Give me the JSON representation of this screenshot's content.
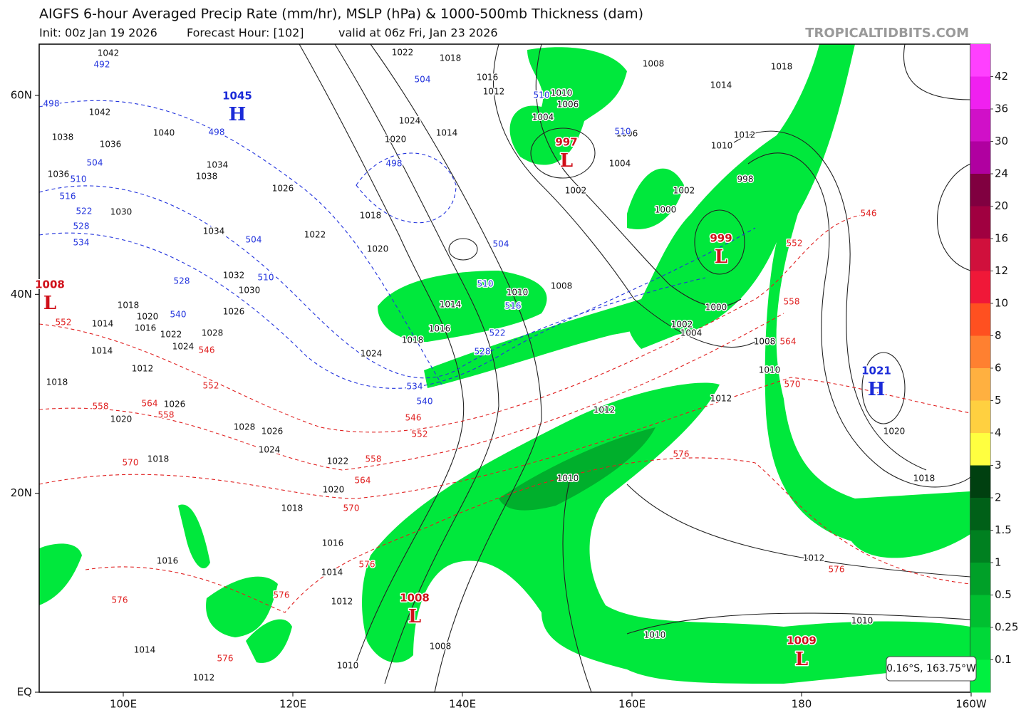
{
  "header": {
    "title": "AIGFS 6-hour Averaged Precip Rate (mm/hr), MSLP (hPa) & 1000-500mb Thickness (dam)",
    "init": "Init: 00z Jan 19 2026",
    "forecast_hour": "Forecast Hour: [102]",
    "valid": "valid at 06z Fri, Jan 23 2026",
    "site": "TROPICALTIDBITS.COM"
  },
  "map": {
    "lat_ticks": [
      {
        "value": 60,
        "label": "60N"
      },
      {
        "value": 40,
        "label": "40N"
      },
      {
        "value": 20,
        "label": "20N"
      },
      {
        "value": 0,
        "label": "EQ"
      }
    ],
    "lon_ticks": [
      {
        "value": 100,
        "label": "100E"
      },
      {
        "value": 120,
        "label": "120E"
      },
      {
        "value": 140,
        "label": "140E"
      },
      {
        "value": 160,
        "label": "160E"
      },
      180,
      {
        "value": 200,
        "label": "160W"
      }
    ],
    "centers": [
      {
        "value": 1045,
        "type": "H"
      },
      {
        "value": 1008,
        "type": "L"
      },
      {
        "value": 997,
        "type": "L"
      },
      {
        "value": 999,
        "type": "L"
      },
      {
        "value": 1021,
        "type": "H"
      },
      {
        "value": 1008,
        "type": "L"
      },
      {
        "value": 1009,
        "type": "L"
      }
    ],
    "isobar_labels": [
      1042,
      1042,
      1038,
      1036,
      1040,
      1034,
      1038,
      1036,
      1030,
      1034,
      1032,
      1030,
      1026,
      1026,
      1022,
      1020,
      1018,
      1020,
      1024,
      1014,
      1022,
      1018,
      1016,
      1012,
      1010,
      1006,
      1004,
      1002,
      1004,
      1000,
      1002,
      1006,
      1008,
      1014,
      1018,
      1012,
      1010,
      998,
      1000,
      1002,
      1004,
      1008,
      1010,
      1012,
      1012,
      1010,
      1008,
      1010,
      1014,
      1016,
      1018,
      1024,
      1022,
      1020,
      1018,
      1016,
      1014,
      1012,
      1010,
      1010,
      1012,
      1010,
      1008,
      1018,
      1020,
      1026,
      1028,
      1026,
      1024,
      1014,
      1014,
      1012,
      1018,
      1020,
      1018,
      1016,
      1014,
      1012,
      1028,
      1024,
      1022,
      1020,
      1018,
      1016
    ],
    "thickness_cold_labels": [
      492,
      498,
      504,
      510,
      516,
      522,
      528,
      534,
      498,
      504,
      510,
      528,
      540,
      498,
      504,
      504,
      510,
      510,
      510,
      516,
      522,
      528,
      534,
      540
    ],
    "thickness_warm_labels": [
      552,
      546,
      552,
      558,
      564,
      558,
      570,
      546,
      552,
      558,
      564,
      570,
      576,
      576,
      576,
      576,
      546,
      552,
      558,
      564,
      570,
      576,
      576
    ]
  },
  "colorbar": {
    "ticks": [
      42,
      36,
      30,
      24,
      20,
      16,
      12,
      10,
      8,
      6,
      5,
      4,
      3,
      2,
      1.5,
      1,
      0.5,
      0.25,
      0.1
    ],
    "colors": [
      "#ff40ff",
      "#f020f0",
      "#d010c8",
      "#b000a0",
      "#800040",
      "#a00040",
      "#d0103c",
      "#f01838",
      "#ff5020",
      "#ff8030",
      "#ffb040",
      "#ffd040",
      "#ffff40",
      "#004010",
      "#006018",
      "#008020",
      "#00a028",
      "#00c030",
      "#00d838",
      "#00f040"
    ]
  },
  "cursor_readout": "0.16°S, 163.75°W"
}
